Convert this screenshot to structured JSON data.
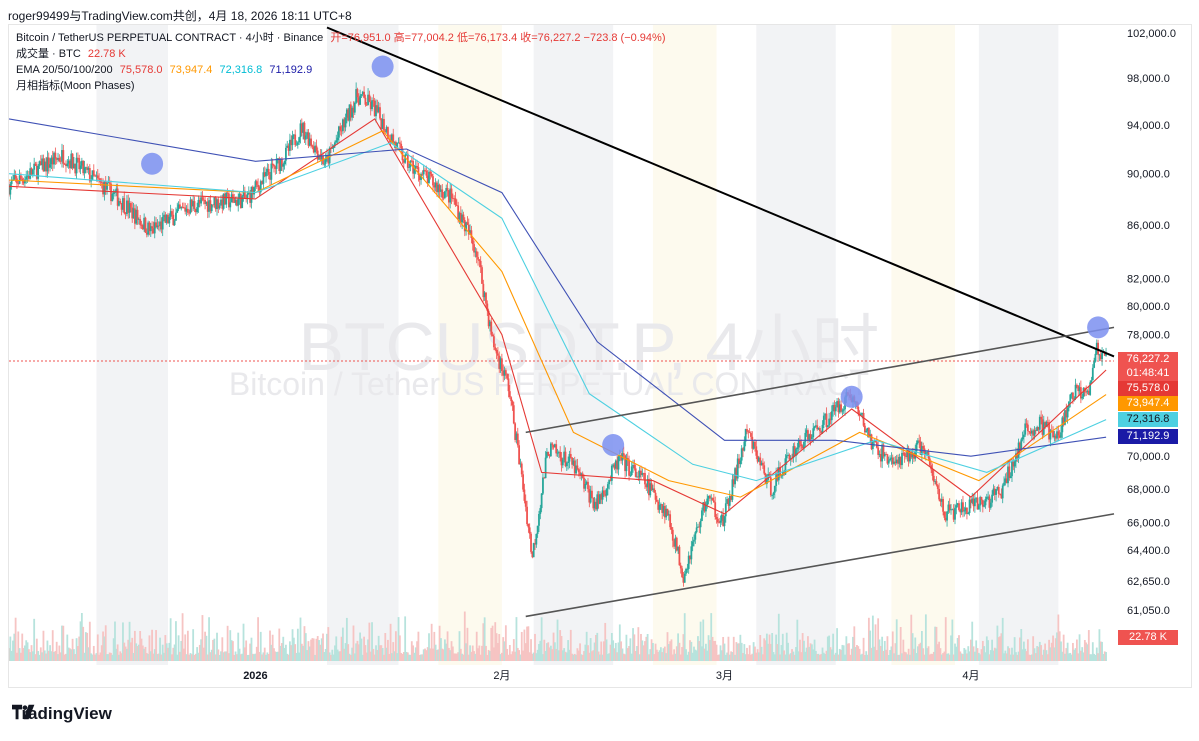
{
  "header": {
    "credit": "roger99499与TradingView.com共创，4月 18, 2026 18:11 UTC+8"
  },
  "legend": {
    "symbol": "Bitcoin / TetherUS PERPETUAL CONTRACT · 4小时 · Binance",
    "ohlc": "开=76,951.0  高=77,004.2  低=76,173.4  收=76,227.2  −723.8 (−0.94%)",
    "volume_label": "成交量 · BTC",
    "volume_value": "22.78 K",
    "ema_label": "EMA 20/50/100/200",
    "ema20": "75,578.0",
    "ema50": "73,947.4",
    "ema100": "72,316.8",
    "ema200": "71,192.9",
    "moon": "月相指标(Moon Phases)"
  },
  "watermark": {
    "line1": "BTCUSDT.P, 4小时",
    "line2": "Bitcoin / TetherUS PERPETUAL CONTRACT"
  },
  "brand": {
    "name": "TradingView"
  },
  "colors": {
    "up": "#26a69a",
    "down": "#ef5350",
    "ema20": "#e53935",
    "ema50": "#ff9800",
    "ema100": "#4dd0e1",
    "ema200": "#3f51b5",
    "moon": "#7b8ff0",
    "band_light": "#fdfaee"
  },
  "chart_data": {
    "type": "candlestick",
    "timeframe": "4h",
    "y_axis": {
      "scale": "log",
      "ticks": [
        102000,
        98000,
        94000,
        90000,
        86000,
        82000,
        80000,
        78000,
        70000,
        68000,
        66000,
        64400,
        62650,
        61050
      ],
      "tick_labels": [
        "102,000.0",
        "98,000.0",
        "94,000.0",
        "90,000.0",
        "86,000.0",
        "82,000.0",
        "80,000.0",
        "78,000.0",
        "70,000.0",
        "68,000.0",
        "66,000.0",
        "64,400.0",
        "62,650.0",
        "61,050.0"
      ]
    },
    "x_axis": {
      "tick_labels": [
        {
          "label": "2026",
          "date": "2026-01-01"
        },
        {
          "label": "2月",
          "date": "2026-02-01"
        },
        {
          "label": "3月",
          "date": "2026-03-01"
        },
        {
          "label": "4月",
          "date": "2026-04-01"
        }
      ]
    },
    "last_price": 76227.2,
    "countdown": "01:48:41",
    "price_labels": [
      {
        "text": "76,227.2",
        "value": 76227.2,
        "color": "#ef5350"
      },
      {
        "text": "75,578.0",
        "value": 75578.0,
        "color": "#e53935"
      },
      {
        "text": "73,947.4",
        "value": 73947.4,
        "color": "#ff9800"
      },
      {
        "text": "72,316.8",
        "value": 72316.8,
        "color": "#4dd0e1"
      },
      {
        "text": "71,192.9",
        "value": 71192.9,
        "color": "#1a1aa6"
      }
    ],
    "volume_tag": "22.78 K",
    "price_path": [
      {
        "date": "2025-12-01",
        "close": 89000
      },
      {
        "date": "2025-12-08",
        "close": 91500
      },
      {
        "date": "2025-12-15",
        "close": 88000
      },
      {
        "date": "2025-12-19",
        "close": 85500
      },
      {
        "date": "2025-12-24",
        "close": 87500
      },
      {
        "date": "2025-12-31",
        "close": 88000
      },
      {
        "date": "2026-01-05",
        "close": 91500
      },
      {
        "date": "2026-01-07",
        "close": 93800
      },
      {
        "date": "2026-01-10",
        "close": 90800
      },
      {
        "date": "2026-01-14",
        "close": 96500
      },
      {
        "date": "2026-01-16",
        "close": 95500
      },
      {
        "date": "2026-01-20",
        "close": 91000
      },
      {
        "date": "2026-01-23",
        "close": 89500
      },
      {
        "date": "2026-01-26",
        "close": 88000
      },
      {
        "date": "2026-01-29",
        "close": 84000
      },
      {
        "date": "2026-01-31",
        "close": 77500
      },
      {
        "date": "2026-02-02",
        "close": 74500
      },
      {
        "date": "2026-02-05",
        "close": 64000
      },
      {
        "date": "2026-02-07",
        "close": 70500
      },
      {
        "date": "2026-02-10",
        "close": 69500
      },
      {
        "date": "2026-02-13",
        "close": 67000
      },
      {
        "date": "2026-02-16",
        "close": 69800
      },
      {
        "date": "2026-02-19",
        "close": 68500
      },
      {
        "date": "2026-02-22",
        "close": 66500
      },
      {
        "date": "2026-02-24",
        "close": 63000
      },
      {
        "date": "2026-02-27",
        "close": 67500
      },
      {
        "date": "2026-03-01",
        "close": 66000
      },
      {
        "date": "2026-03-04",
        "close": 71500
      },
      {
        "date": "2026-03-07",
        "close": 68000
      },
      {
        "date": "2026-03-10",
        "close": 70500
      },
      {
        "date": "2026-03-13",
        "close": 71800
      },
      {
        "date": "2026-03-17",
        "close": 74000
      },
      {
        "date": "2026-03-20",
        "close": 70500
      },
      {
        "date": "2026-03-23",
        "close": 69500
      },
      {
        "date": "2026-03-26",
        "close": 70700
      },
      {
        "date": "2026-03-29",
        "close": 66500
      },
      {
        "date": "2026-04-02",
        "close": 67000
      },
      {
        "date": "2026-04-05",
        "close": 67800
      },
      {
        "date": "2026-04-08",
        "close": 71500
      },
      {
        "date": "2026-04-10",
        "close": 72000
      },
      {
        "date": "2026-04-12",
        "close": 71000
      },
      {
        "date": "2026-04-14",
        "close": 74000
      },
      {
        "date": "2026-04-16",
        "close": 74500
      },
      {
        "date": "2026-04-17",
        "close": 77000
      },
      {
        "date": "2026-04-18",
        "close": 76227
      }
    ],
    "ema_lines": [
      {
        "name": "EMA 20",
        "points": [
          {
            "date": "2025-12-01",
            "value": 89000
          },
          {
            "date": "2026-01-01",
            "value": 88000
          },
          {
            "date": "2026-01-16",
            "value": 94500
          },
          {
            "date": "2026-02-01",
            "value": 78000
          },
          {
            "date": "2026-02-06",
            "value": 69000
          },
          {
            "date": "2026-02-20",
            "value": 68500
          },
          {
            "date": "2026-03-01",
            "value": 66500
          },
          {
            "date": "2026-03-17",
            "value": 73000
          },
          {
            "date": "2026-04-01",
            "value": 67500
          },
          {
            "date": "2026-04-18",
            "value": 75578
          }
        ]
      },
      {
        "name": "EMA 50",
        "points": [
          {
            "date": "2025-12-01",
            "value": 89500
          },
          {
            "date": "2026-01-01",
            "value": 88500
          },
          {
            "date": "2026-01-17",
            "value": 93500
          },
          {
            "date": "2026-02-01",
            "value": 82500
          },
          {
            "date": "2026-02-10",
            "value": 71500
          },
          {
            "date": "2026-02-22",
            "value": 68500
          },
          {
            "date": "2026-03-03",
            "value": 67500
          },
          {
            "date": "2026-03-18",
            "value": 71500
          },
          {
            "date": "2026-04-02",
            "value": 68500
          },
          {
            "date": "2026-04-18",
            "value": 73947
          }
        ]
      },
      {
        "name": "EMA 100",
        "points": [
          {
            "date": "2025-12-01",
            "value": 90000
          },
          {
            "date": "2026-01-01",
            "value": 88500
          },
          {
            "date": "2026-01-18",
            "value": 92500
          },
          {
            "date": "2026-02-01",
            "value": 86500
          },
          {
            "date": "2026-02-12",
            "value": 74000
          },
          {
            "date": "2026-02-25",
            "value": 69500
          },
          {
            "date": "2026-03-05",
            "value": 68500
          },
          {
            "date": "2026-03-20",
            "value": 71000
          },
          {
            "date": "2026-04-03",
            "value": 69000
          },
          {
            "date": "2026-04-18",
            "value": 72317
          }
        ]
      },
      {
        "name": "EMA 200",
        "points": [
          {
            "date": "2025-12-01",
            "value": 94500
          },
          {
            "date": "2026-01-01",
            "value": 91000
          },
          {
            "date": "2026-01-20",
            "value": 92000
          },
          {
            "date": "2026-02-01",
            "value": 88500
          },
          {
            "date": "2026-02-13",
            "value": 77500
          },
          {
            "date": "2026-03-01",
            "value": 71000
          },
          {
            "date": "2026-03-15",
            "value": 71000
          },
          {
            "date": "2026-04-01",
            "value": 70000
          },
          {
            "date": "2026-04-18",
            "value": 71193
          }
        ]
      }
    ],
    "trendlines": [
      {
        "name": "descending-resistance",
        "from": {
          "date": "2026-01-10",
          "value": 102500
        },
        "to": {
          "date": "2026-04-19",
          "value": 76500
        }
      },
      {
        "name": "channel-upper",
        "from": {
          "date": "2026-02-04",
          "value": 71500
        },
        "to": {
          "date": "2026-04-19",
          "value": 78500
        }
      },
      {
        "name": "channel-lower",
        "from": {
          "date": "2026-02-04",
          "value": 60700
        },
        "to": {
          "date": "2026-04-19",
          "value": 66500
        }
      }
    ],
    "moon_phases": [
      {
        "date": "2025-12-19",
        "value": 90800
      },
      {
        "date": "2026-01-17",
        "value": 99000
      },
      {
        "date": "2026-02-15",
        "value": 70700
      },
      {
        "date": "2026-03-17",
        "value": 73800
      },
      {
        "date": "2026-04-17",
        "value": 78500
      }
    ]
  }
}
